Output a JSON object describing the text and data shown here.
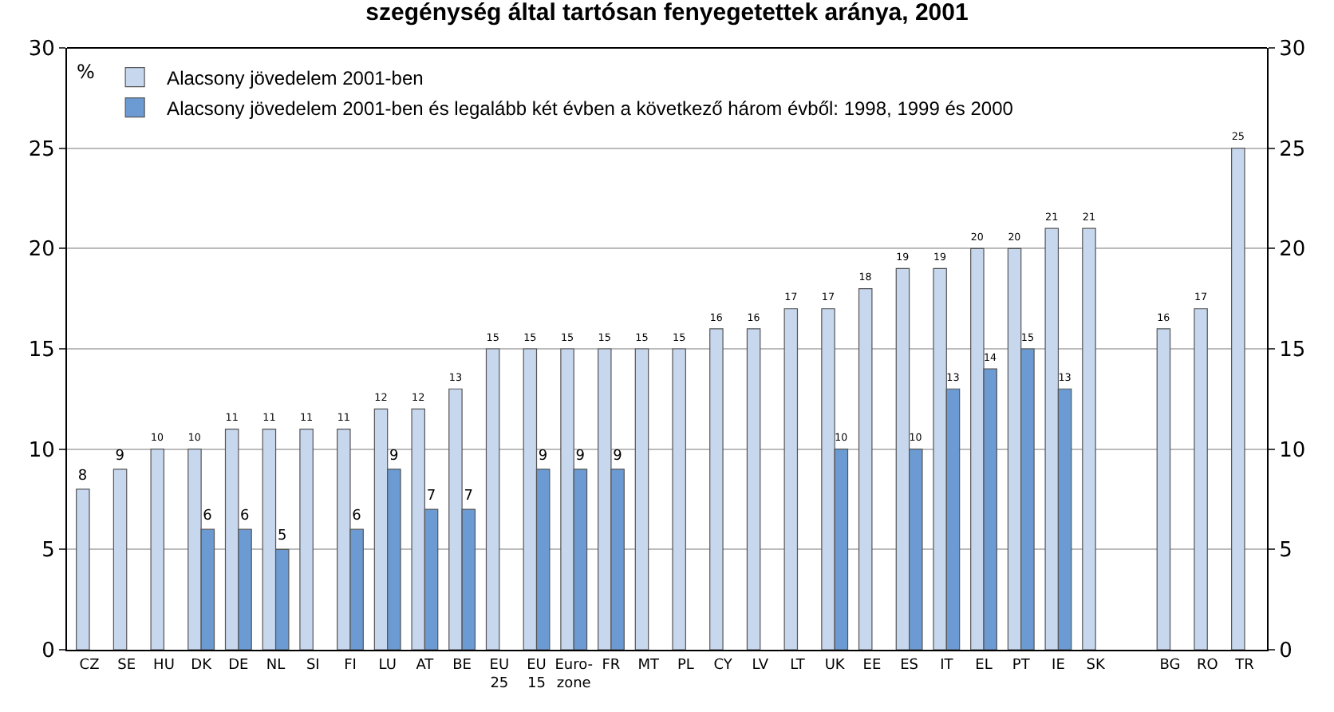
{
  "chart_data": {
    "type": "bar",
    "title": "szegénység által tartósan fenyegetettek aránya, 2001",
    "ylabel": "%",
    "categories": [
      "CZ",
      "SE",
      "HU",
      "DK",
      "DE",
      "NL",
      "SI",
      "FI",
      "LU",
      "AT",
      "BE",
      "EU 25",
      "EU 15",
      "Euro-zone",
      "FR",
      "MT",
      "PL",
      "CY",
      "LV",
      "LT",
      "UK",
      "EE",
      "ES",
      "IT",
      "EL",
      "PT",
      "IE",
      "SK",
      null,
      "BG",
      "RO",
      "TR"
    ],
    "series": [
      {
        "name": "Alacsony jövedelem 2001-ben",
        "color": "#c6d7ee",
        "values": [
          8,
          9,
          10,
          10,
          11,
          11,
          11,
          11,
          12,
          12,
          13,
          15,
          15,
          15,
          15,
          15,
          15,
          16,
          16,
          17,
          17,
          18,
          19,
          19,
          20,
          20,
          21,
          21,
          null,
          16,
          17,
          25
        ]
      },
      {
        "name": "Alacsony jövedelem 2001-ben és legalább két évben a következő három évből: 1998, 1999 és 2000",
        "color": "#6b9bd2",
        "values": [
          null,
          null,
          null,
          6,
          6,
          5,
          null,
          6,
          9,
          7,
          7,
          null,
          9,
          9,
          9,
          null,
          null,
          null,
          null,
          null,
          10,
          null,
          10,
          13,
          14,
          15,
          13,
          null,
          null,
          null,
          null,
          null
        ]
      }
    ],
    "ylim": [
      0,
      30
    ],
    "yticks": [
      0,
      5,
      10,
      15,
      20,
      25,
      30
    ],
    "y2lim": [
      0,
      30
    ],
    "y2ticks": [
      0,
      5,
      10,
      15,
      20,
      25,
      30
    ],
    "grid": "y",
    "legend": "top left",
    "data_labels": true
  }
}
